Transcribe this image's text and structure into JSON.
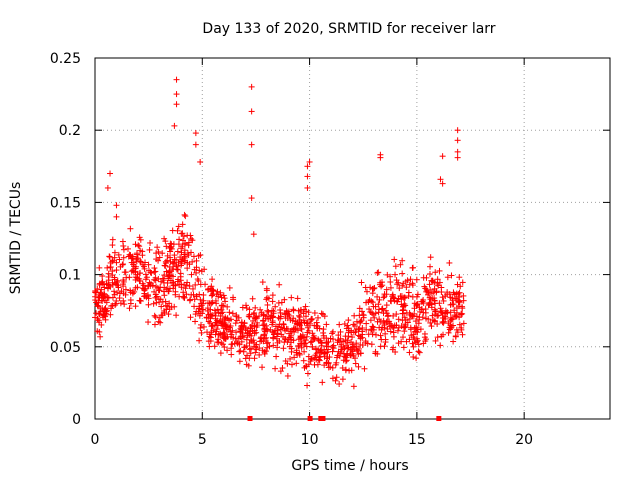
{
  "chart_data": {
    "type": "scatter",
    "title": "Day 133 of 2020, SRMTID for receiver larr",
    "xlabel": "GPS time / hours",
    "ylabel": "SRMTID / TECUs",
    "xlim": [
      0,
      24
    ],
    "ylim": [
      0,
      0.25
    ],
    "xticks": [
      0,
      5,
      10,
      15,
      20
    ],
    "yticks": [
      0,
      0.05,
      0.1,
      0.15,
      0.2,
      0.25
    ],
    "xtick_labels": [
      "0",
      "5",
      "10",
      "15",
      "20"
    ],
    "ytick_labels": [
      "0",
      "0.05",
      "0.1",
      "0.15",
      "0.2",
      "0.25"
    ],
    "grid": true,
    "series": [
      {
        "name": "SRMTID",
        "marker": "plus",
        "color": "#ff0000",
        "data_hours": [
          0,
          17.2
        ],
        "spikes": [
          {
            "x": 3.8,
            "y": 0.235
          },
          {
            "x": 3.8,
            "y": 0.225
          },
          {
            "x": 3.8,
            "y": 0.218
          },
          {
            "x": 7.3,
            "y": 0.23
          },
          {
            "x": 7.3,
            "y": 0.213
          },
          {
            "x": 7.3,
            "y": 0.19
          },
          {
            "x": 7.3,
            "y": 0.153
          },
          {
            "x": 7.4,
            "y": 0.128
          },
          {
            "x": 4.7,
            "y": 0.198
          },
          {
            "x": 4.7,
            "y": 0.19
          },
          {
            "x": 4.9,
            "y": 0.178
          },
          {
            "x": 3.7,
            "y": 0.203
          },
          {
            "x": 9.9,
            "y": 0.175
          },
          {
            "x": 9.9,
            "y": 0.168
          },
          {
            "x": 9.9,
            "y": 0.16
          },
          {
            "x": 10.0,
            "y": 0.178
          },
          {
            "x": 13.3,
            "y": 0.183
          },
          {
            "x": 13.3,
            "y": 0.181
          },
          {
            "x": 16.2,
            "y": 0.182
          },
          {
            "x": 16.1,
            "y": 0.166
          },
          {
            "x": 16.2,
            "y": 0.163
          },
          {
            "x": 16.9,
            "y": 0.2
          },
          {
            "x": 16.9,
            "y": 0.193
          },
          {
            "x": 16.9,
            "y": 0.185
          },
          {
            "x": 16.9,
            "y": 0.181
          },
          {
            "x": 0.7,
            "y": 0.17
          },
          {
            "x": 0.6,
            "y": 0.16
          },
          {
            "x": 1.0,
            "y": 0.148
          },
          {
            "x": 1.0,
            "y": 0.14
          }
        ],
        "envelope": [
          {
            "x": 0.0,
            "lo": 0.05,
            "hi": 0.095
          },
          {
            "x": 1.0,
            "lo": 0.06,
            "hi": 0.125
          },
          {
            "x": 2.0,
            "lo": 0.06,
            "hi": 0.13
          },
          {
            "x": 3.0,
            "lo": 0.045,
            "hi": 0.12
          },
          {
            "x": 4.0,
            "lo": 0.06,
            "hi": 0.15
          },
          {
            "x": 5.0,
            "lo": 0.04,
            "hi": 0.11
          },
          {
            "x": 6.0,
            "lo": 0.03,
            "hi": 0.09
          },
          {
            "x": 7.0,
            "lo": 0.025,
            "hi": 0.085
          },
          {
            "x": 8.0,
            "lo": 0.03,
            "hi": 0.095
          },
          {
            "x": 9.0,
            "lo": 0.025,
            "hi": 0.085
          },
          {
            "x": 10.0,
            "lo": 0.02,
            "hi": 0.08
          },
          {
            "x": 11.0,
            "lo": 0.02,
            "hi": 0.07
          },
          {
            "x": 12.0,
            "lo": 0.02,
            "hi": 0.075
          },
          {
            "x": 13.0,
            "lo": 0.03,
            "hi": 0.11
          },
          {
            "x": 14.0,
            "lo": 0.03,
            "hi": 0.11
          },
          {
            "x": 15.0,
            "lo": 0.03,
            "hi": 0.1
          },
          {
            "x": 16.0,
            "lo": 0.04,
            "hi": 0.11
          },
          {
            "x": 17.2,
            "lo": 0.04,
            "hi": 0.1
          }
        ]
      }
    ],
    "zero_markers": [
      7.2,
      10.0,
      10.5,
      10.6,
      16.0
    ]
  }
}
